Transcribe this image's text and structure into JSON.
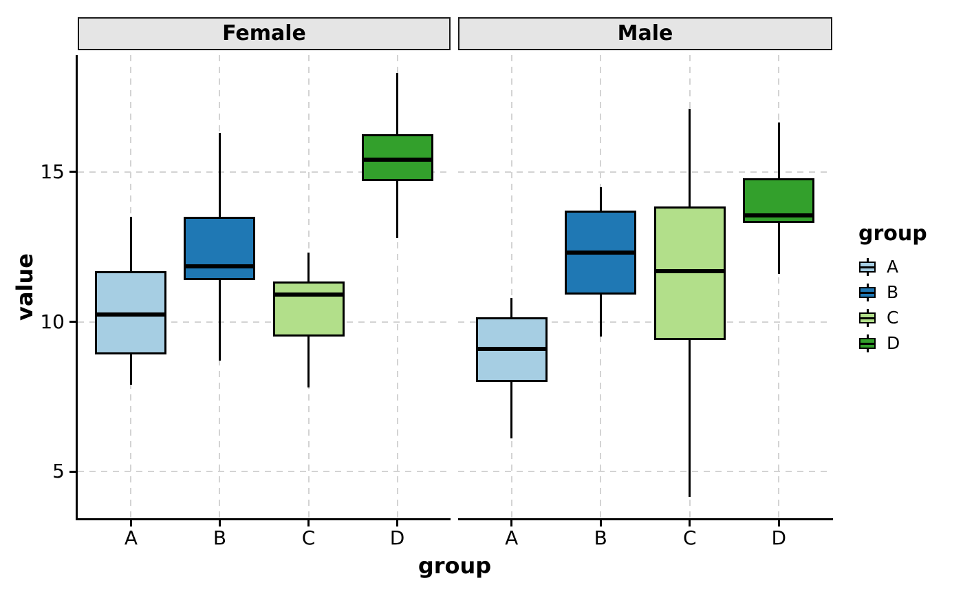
{
  "chart_data": {
    "type": "boxplot",
    "xlabel": "group",
    "ylabel": "value",
    "yticks": [
      5,
      10,
      15
    ],
    "ylim": [
      3.4,
      18.9
    ],
    "categories": [
      "A",
      "B",
      "C",
      "D"
    ],
    "grid": "dashed",
    "legend": {
      "title": "group",
      "position": "right",
      "items": [
        {
          "label": "A",
          "color": "#A6CEE3"
        },
        {
          "label": "B",
          "color": "#1F78B4"
        },
        {
          "label": "C",
          "color": "#B2DF8A"
        },
        {
          "label": "D",
          "color": "#33A02C"
        }
      ]
    },
    "facets": [
      {
        "label": "Female",
        "boxes": [
          {
            "group": "A",
            "min": 7.9,
            "q1": 8.9,
            "median": 10.25,
            "q3": 11.7,
            "max": 13.5
          },
          {
            "group": "B",
            "min": 8.7,
            "q1": 11.4,
            "median": 11.85,
            "q3": 13.5,
            "max": 16.3
          },
          {
            "group": "C",
            "min": 7.8,
            "q1": 9.5,
            "median": 10.9,
            "q3": 11.35,
            "max": 12.3
          },
          {
            "group": "D",
            "min": 12.8,
            "q1": 14.7,
            "median": 15.4,
            "q3": 16.25,
            "max": 18.3
          }
        ]
      },
      {
        "label": "Male",
        "boxes": [
          {
            "group": "A",
            "min": 6.1,
            "q1": 8.0,
            "median": 9.1,
            "q3": 10.15,
            "max": 10.8
          },
          {
            "group": "B",
            "min": 9.5,
            "q1": 10.9,
            "median": 12.3,
            "q3": 13.7,
            "max": 14.5
          },
          {
            "group": "C",
            "min": 4.15,
            "q1": 9.4,
            "median": 11.7,
            "q3": 13.85,
            "max": 17.1
          },
          {
            "group": "D",
            "min": 11.6,
            "q1": 13.3,
            "median": 13.55,
            "q3": 14.8,
            "max": 16.65
          }
        ]
      }
    ],
    "style": {
      "strip_fill": "#E5E5E5",
      "strip_border": "#1A1A1A",
      "grid_color": "#D3D3D3",
      "axis_color": "#000000",
      "box_border": "#000000",
      "median_color": "#000000",
      "text_color": "#000000"
    }
  }
}
